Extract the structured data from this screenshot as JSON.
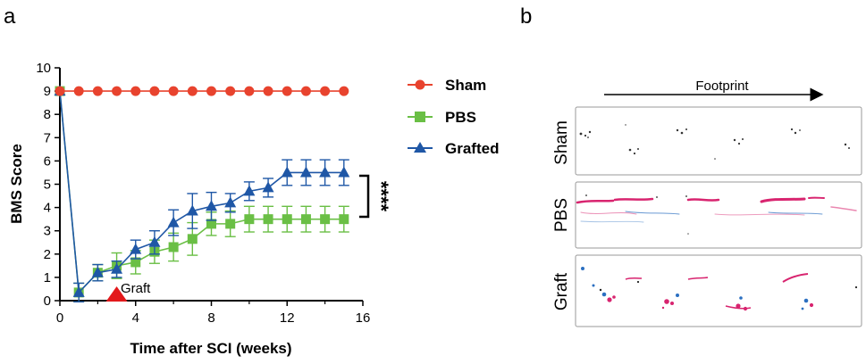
{
  "panels": {
    "a": "a",
    "b": "b"
  },
  "chart_data": {
    "type": "line",
    "xlabel": "Time after SCI (weeks)",
    "ylabel": "BMS Score",
    "xlim": [
      0,
      16
    ],
    "ylim": [
      0,
      10
    ],
    "x_ticks": [
      0,
      4,
      8,
      12,
      16
    ],
    "y_ticks": [
      0,
      1,
      2,
      3,
      4,
      5,
      6,
      7,
      8,
      9,
      10
    ],
    "series": [
      {
        "name": "Sham",
        "color": "#e8432e",
        "marker": "circle",
        "x": [
          0,
          1,
          2,
          3,
          4,
          5,
          6,
          7,
          8,
          9,
          10,
          11,
          12,
          13,
          14,
          15
        ],
        "values": [
          9,
          9,
          9,
          9,
          9,
          9,
          9,
          9,
          9,
          9,
          9,
          9,
          9,
          9,
          9,
          9
        ],
        "errors": [
          0,
          0,
          0,
          0,
          0,
          0,
          0,
          0,
          0,
          0,
          0,
          0,
          0,
          0,
          0,
          0
        ]
      },
      {
        "name": "PBS",
        "color": "#6abf45",
        "marker": "square",
        "x": [
          0,
          1,
          2,
          3,
          4,
          5,
          6,
          7,
          8,
          9,
          10,
          11,
          12,
          13,
          14,
          15
        ],
        "values": [
          9,
          0.35,
          1.2,
          1.5,
          1.65,
          2.1,
          2.3,
          2.65,
          3.3,
          3.3,
          3.5,
          3.5,
          3.5,
          3.5,
          3.5,
          3.5
        ],
        "errors": [
          0,
          0.4,
          0.35,
          0.55,
          0.5,
          0.5,
          0.6,
          0.7,
          0.5,
          0.55,
          0.55,
          0.55,
          0.55,
          0.55,
          0.55,
          0.55
        ]
      },
      {
        "name": "Grafted",
        "color": "#1f57a6",
        "marker": "triangle",
        "x": [
          0,
          1,
          2,
          3,
          4,
          5,
          6,
          7,
          8,
          9,
          10,
          11,
          12,
          13,
          14,
          15
        ],
        "values": [
          9,
          0.35,
          1.2,
          1.35,
          2.2,
          2.5,
          3.35,
          3.85,
          4.05,
          4.2,
          4.7,
          4.85,
          5.5,
          5.5,
          5.5,
          5.5
        ],
        "errors": [
          0,
          0.4,
          0.35,
          0.35,
          0.4,
          0.5,
          0.55,
          0.75,
          0.6,
          0.4,
          0.4,
          0.4,
          0.55,
          0.55,
          0.55,
          0.55
        ]
      }
    ],
    "significance": {
      "label": "****",
      "between": [
        "Grafted",
        "PBS"
      ]
    },
    "annotation": {
      "text": "Graft",
      "x": 3,
      "color": "#e3191c"
    }
  },
  "footprint": {
    "header": "Footprint",
    "rows": [
      {
        "label": "Sham"
      },
      {
        "label": "PBS"
      },
      {
        "label": "Graft"
      }
    ],
    "colors": {
      "forelimb": "#2b6fc1",
      "hindlimb": "#d8246f",
      "dark": "#222222"
    }
  }
}
